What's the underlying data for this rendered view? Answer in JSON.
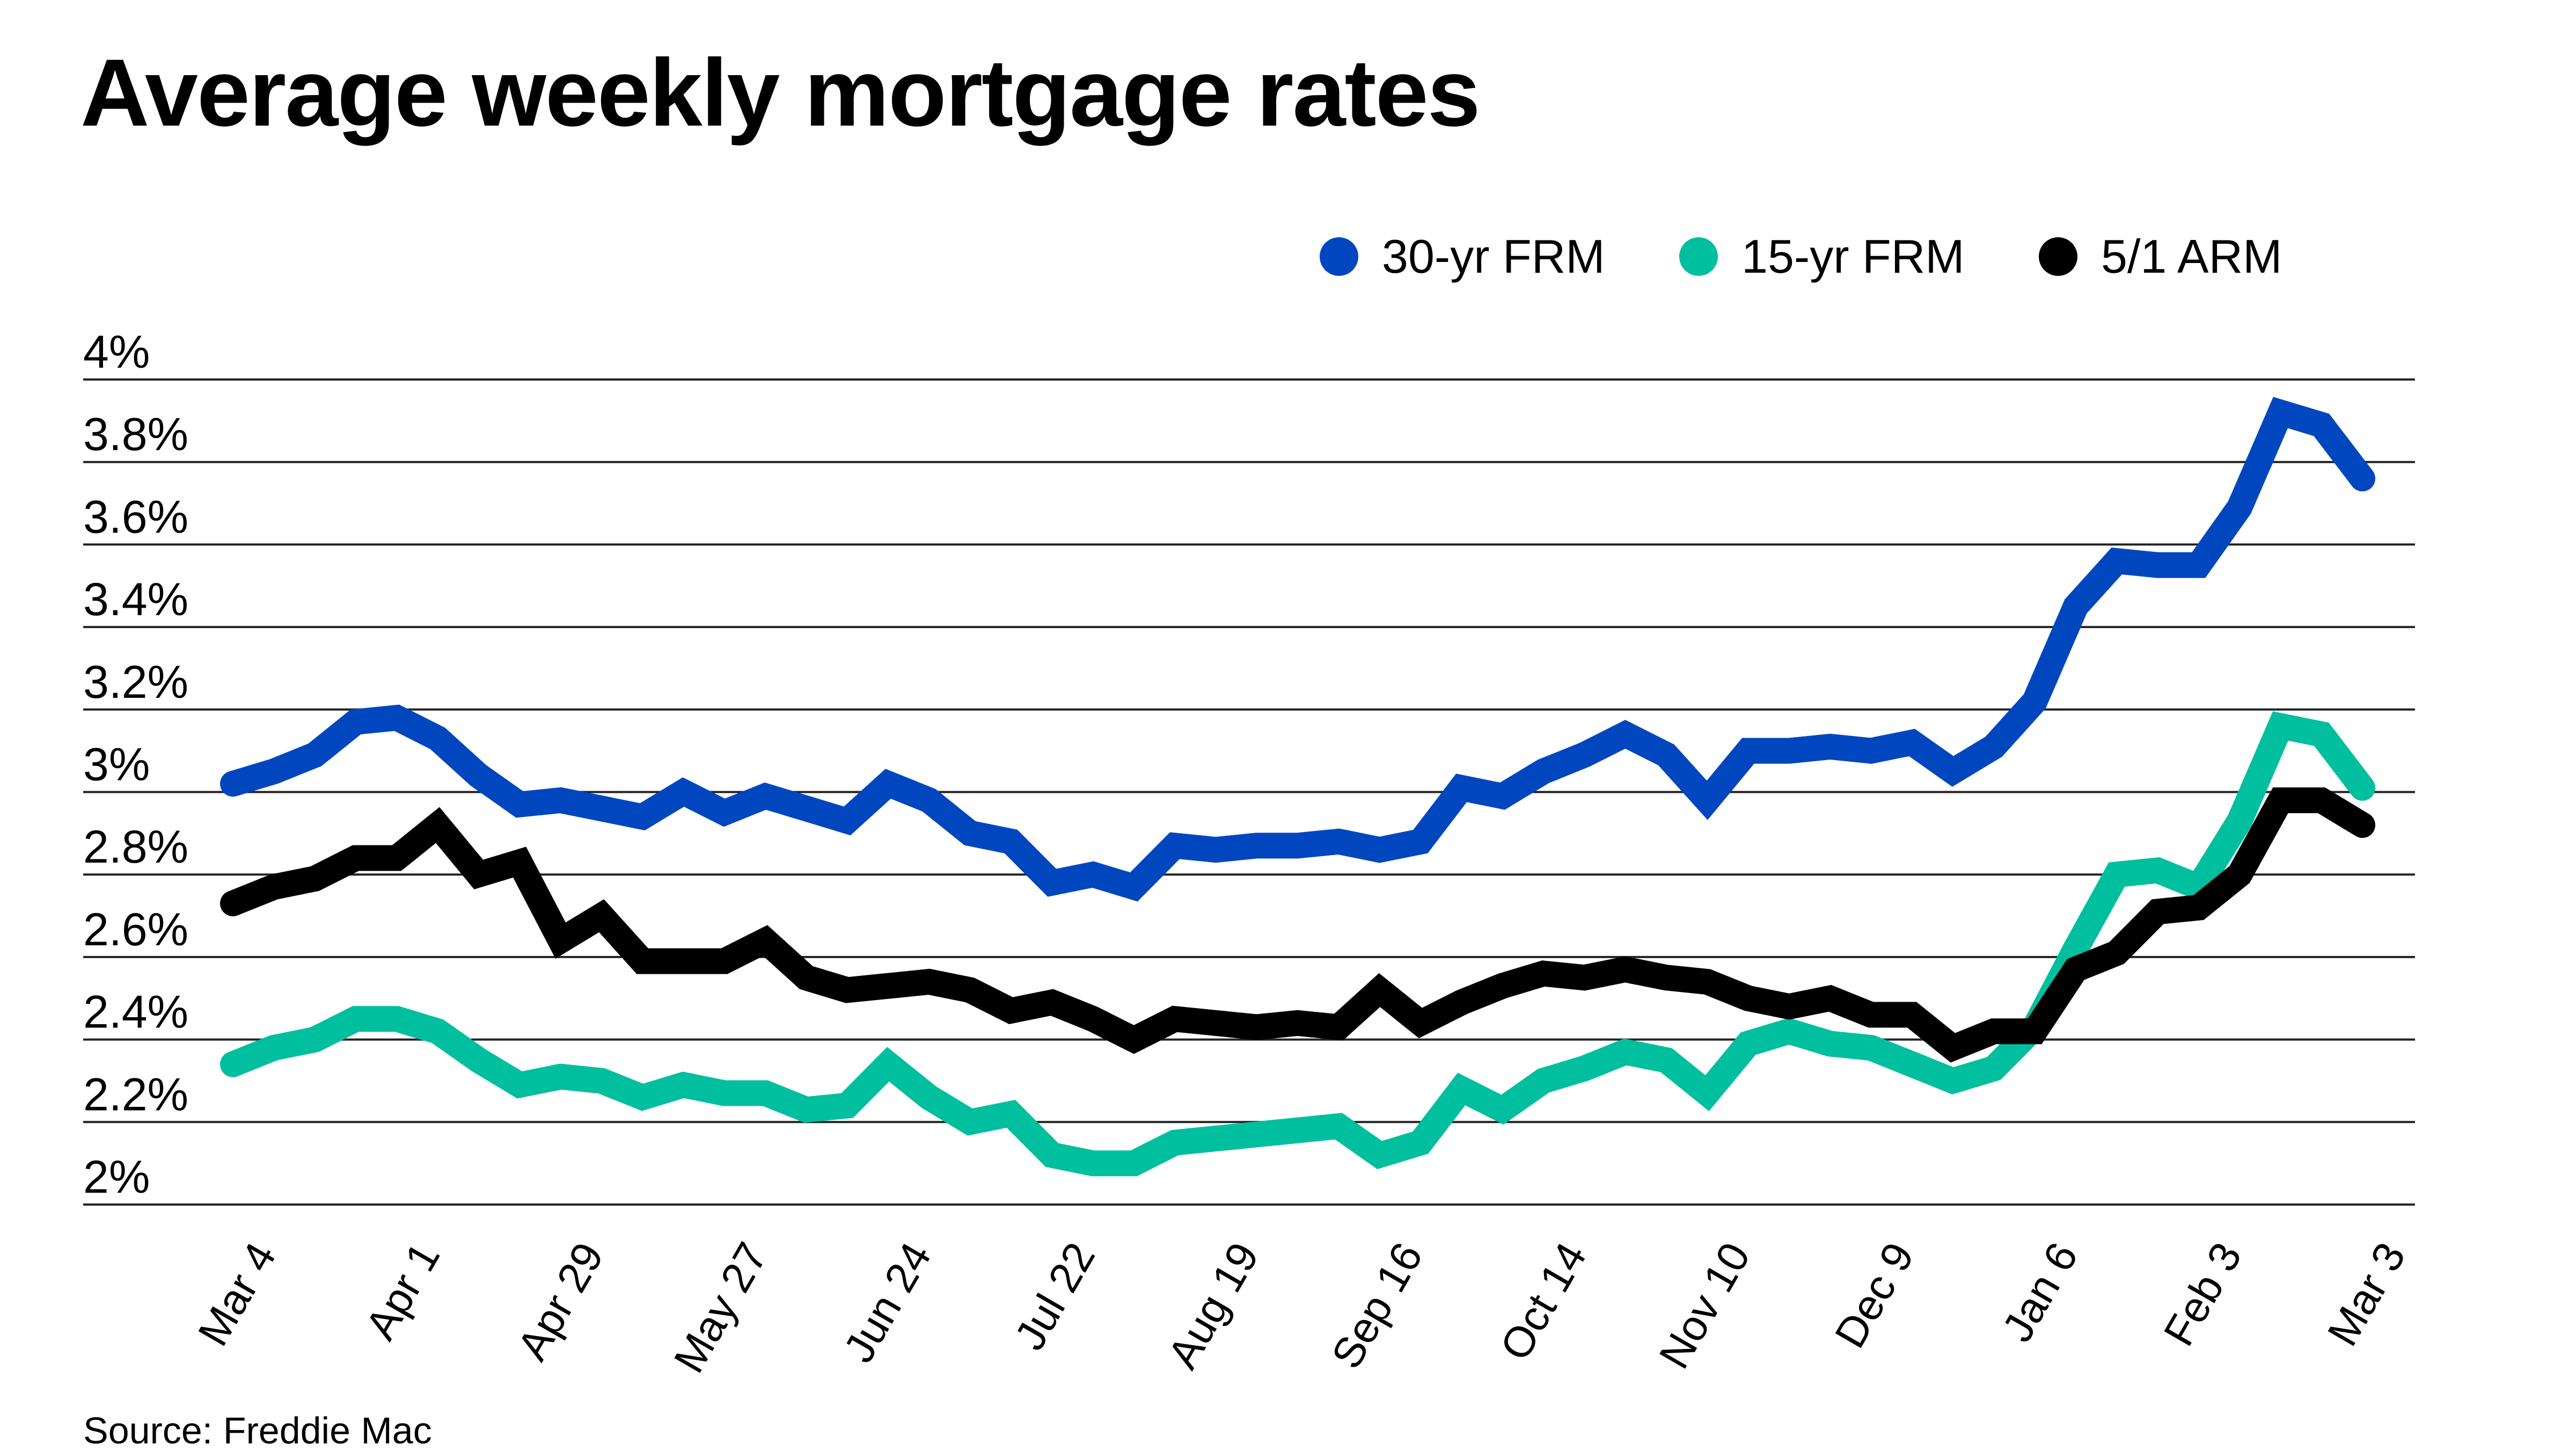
{
  "chart_data": {
    "type": "line",
    "title": "Average weekly mortgage rates",
    "source": "Source: Freddie Mac",
    "xlabel": "",
    "ylabel": "",
    "ylim": [
      2,
      4
    ],
    "y_ticks": [
      "2%",
      "2.2%",
      "2.4%",
      "2.6%",
      "2.8%",
      "3%",
      "3.2%",
      "3.4%",
      "3.6%",
      "3.8%",
      "4%"
    ],
    "y_tick_values": [
      2,
      2.2,
      2.4,
      2.6,
      2.8,
      3,
      3.2,
      3.4,
      3.6,
      3.8,
      4
    ],
    "x_ticks": [
      "Mar 4",
      "Apr 1",
      "Apr 29",
      "May 27",
      "Jun 24",
      "Jul 22",
      "Aug 19",
      "Sep 16",
      "Oct 14",
      "Nov 10",
      "Dec 9",
      "Jan 6",
      "Feb 3",
      "Mar 3"
    ],
    "grid": "horizontal",
    "legend_position": "top-right",
    "x": [
      "Mar 4",
      "Mar 11",
      "Mar 18",
      "Mar 25",
      "Apr 1",
      "Apr 8",
      "Apr 15",
      "Apr 22",
      "Apr 29",
      "May 6",
      "May 13",
      "May 20",
      "May 27",
      "Jun 3",
      "Jun 10",
      "Jun 17",
      "Jun 24",
      "Jul 1",
      "Jul 8",
      "Jul 15",
      "Jul 22",
      "Jul 29",
      "Aug 5",
      "Aug 12",
      "Aug 19",
      "Aug 26",
      "Sep 2",
      "Sep 9",
      "Sep 16",
      "Sep 23",
      "Sep 30",
      "Oct 7",
      "Oct 14",
      "Oct 21",
      "Oct 28",
      "Nov 4",
      "Nov 10",
      "Nov 18",
      "Nov 24",
      "Dec 2",
      "Dec 9",
      "Dec 16",
      "Dec 23",
      "Dec 30",
      "Jan 6",
      "Jan 13",
      "Jan 20",
      "Jan 27",
      "Feb 3",
      "Feb 10",
      "Feb 17",
      "Feb 24",
      "Mar 3"
    ],
    "series": [
      {
        "name": "30-yr FRM",
        "color": "#0047BF",
        "values": [
          3.02,
          3.05,
          3.09,
          3.17,
          3.18,
          3.13,
          3.04,
          2.97,
          2.98,
          2.96,
          2.94,
          3.0,
          2.95,
          2.99,
          2.96,
          2.93,
          3.02,
          2.98,
          2.9,
          2.88,
          2.78,
          2.8,
          2.77,
          2.87,
          2.86,
          2.87,
          2.87,
          2.88,
          2.86,
          2.88,
          3.01,
          2.99,
          3.05,
          3.09,
          3.14,
          3.09,
          2.98,
          3.1,
          3.1,
          3.11,
          3.1,
          3.12,
          3.05,
          3.11,
          3.22,
          3.45,
          3.56,
          3.55,
          3.55,
          3.69,
          3.92,
          3.89,
          3.76
        ]
      },
      {
        "name": "15-yr FRM",
        "color": "#00BF9F",
        "values": [
          2.34,
          2.38,
          2.4,
          2.45,
          2.45,
          2.42,
          2.35,
          2.29,
          2.31,
          2.3,
          2.26,
          2.29,
          2.27,
          2.27,
          2.23,
          2.24,
          2.34,
          2.26,
          2.2,
          2.22,
          2.12,
          2.1,
          2.1,
          2.15,
          2.16,
          2.17,
          2.18,
          2.19,
          2.12,
          2.15,
          2.28,
          2.23,
          2.3,
          2.33,
          2.37,
          2.35,
          2.27,
          2.39,
          2.42,
          2.39,
          2.38,
          2.34,
          2.3,
          2.33,
          2.43,
          2.62,
          2.8,
          2.81,
          2.77,
          2.93,
          3.16,
          3.14,
          3.01
        ]
      },
      {
        "name": "5/1 ARM",
        "color": "#000000",
        "values": [
          2.73,
          2.77,
          2.79,
          2.84,
          2.84,
          2.92,
          2.8,
          2.83,
          2.64,
          2.7,
          2.59,
          2.59,
          2.59,
          2.64,
          2.55,
          2.52,
          2.53,
          2.54,
          2.52,
          2.47,
          2.49,
          2.45,
          2.4,
          2.45,
          2.44,
          2.43,
          2.44,
          2.43,
          2.52,
          2.44,
          2.49,
          2.53,
          2.56,
          2.55,
          2.57,
          2.55,
          2.54,
          2.5,
          2.48,
          2.5,
          2.46,
          2.46,
          2.38,
          2.42,
          2.42,
          2.57,
          2.61,
          2.71,
          2.72,
          2.8,
          2.98,
          2.98,
          2.92
        ]
      }
    ]
  }
}
